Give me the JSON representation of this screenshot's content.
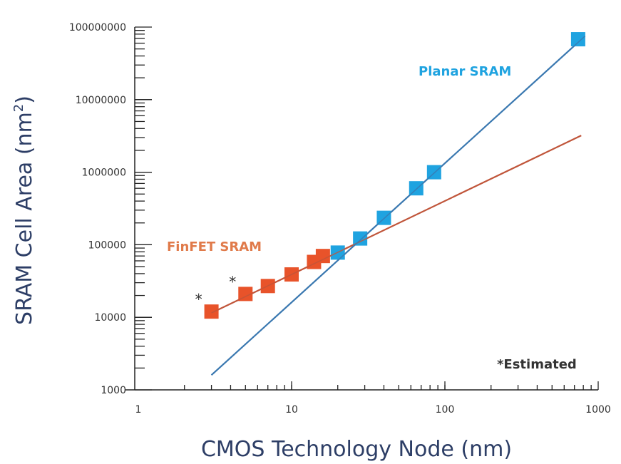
{
  "chart_data": {
    "type": "scatter",
    "xlabel": "CMOS Technology Node (nm)",
    "ylabel": "SRAM Cell Area (nm",
    "ylabel_sup": "2",
    "ylabel_close": ")",
    "x_scale": "log",
    "y_scale": "log",
    "xlim": [
      1,
      1000
    ],
    "ylim": [
      1000,
      100000000
    ],
    "x_ticks": [
      "1",
      "10",
      "100",
      "1000"
    ],
    "y_ticks": [
      "1000",
      "10000",
      "100000",
      "1000000",
      "10000000",
      "100000000"
    ],
    "grid": false,
    "annotation": "*Estimated",
    "series": [
      {
        "name": "FinFET SRAM",
        "color": "#e8532a",
        "line_color": "#c0553a",
        "points": [
          {
            "x": 3,
            "y": 12000,
            "estimated": true
          },
          {
            "x": 5,
            "y": 21000,
            "estimated": true
          },
          {
            "x": 7,
            "y": 27000
          },
          {
            "x": 10,
            "y": 39000
          },
          {
            "x": 14,
            "y": 58000
          },
          {
            "x": 16,
            "y": 70000
          }
        ],
        "trend": [
          {
            "x": 3,
            "y": 11500
          },
          {
            "x": 775,
            "y": 3200000
          }
        ]
      },
      {
        "name": "Planar SRAM",
        "color": "#1fa3e0",
        "line_color": "#3a78b0",
        "points": [
          {
            "x": 20,
            "y": 78000
          },
          {
            "x": 28,
            "y": 122000
          },
          {
            "x": 40,
            "y": 235000
          },
          {
            "x": 65,
            "y": 600000
          },
          {
            "x": 85,
            "y": 1000000
          },
          {
            "x": 740,
            "y": 68000000
          }
        ],
        "trend": [
          {
            "x": 3,
            "y": 1600
          },
          {
            "x": 820,
            "y": 75000000
          }
        ]
      }
    ]
  }
}
